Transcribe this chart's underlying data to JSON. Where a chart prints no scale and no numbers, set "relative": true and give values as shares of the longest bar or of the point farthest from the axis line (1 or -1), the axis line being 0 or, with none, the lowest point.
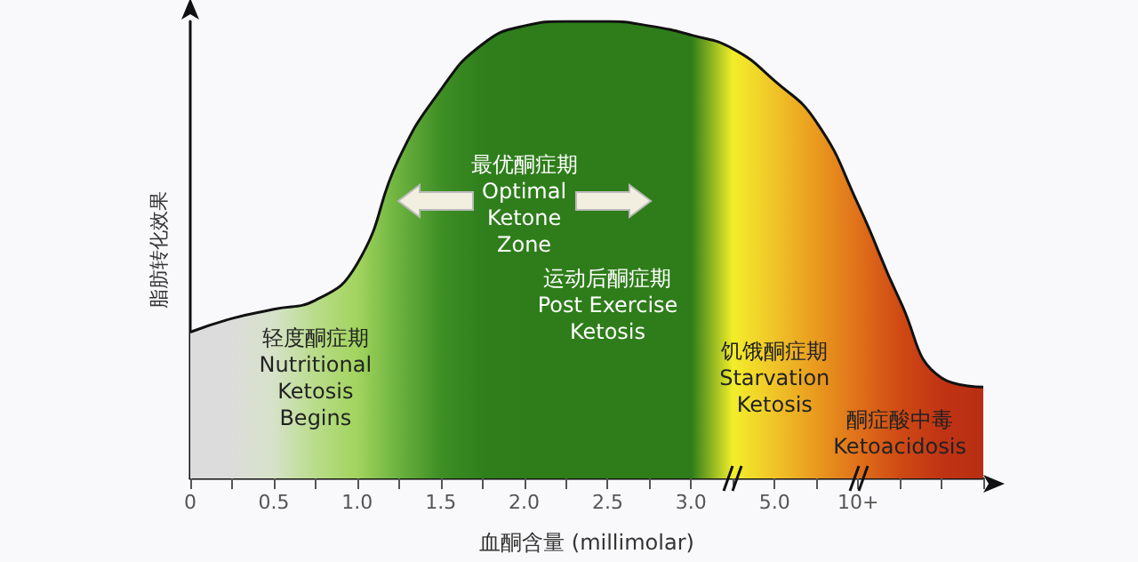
{
  "chart_data": {
    "type": "area",
    "relative": true,
    "xlabel": "血酮含量 (millimolar)",
    "ylabel": "脂肪转化效果",
    "categories": [
      "0",
      null,
      "0.5",
      null,
      "1.0",
      null,
      "1.5",
      null,
      "2.0",
      null,
      "2.5",
      null,
      "3.0",
      null,
      "5.0",
      null,
      "10+",
      null,
      null,
      null
    ],
    "series": [
      {
        "color": "#111111",
        "values": [
          0.32,
          0.35,
          0.37,
          0.39,
          0.47,
          0.7,
          0.85,
          0.95,
          0.99,
          1.0,
          1.0,
          0.99,
          0.97,
          0.94,
          0.87,
          0.78,
          0.6,
          0.39,
          0.22,
          0.2
        ],
        "colors": [
          "#dcdcdc",
          "#dcdcdc",
          "#d6e2c8",
          "#b9dc8a",
          "#a2d45e",
          "#6bb23e",
          "#3f8f26",
          "#2f7f1c",
          "#2e7d1a",
          "#2e7d1a",
          "#2e7d1a",
          "#2e7d1a",
          "#2e7d1a",
          "#f2ee2a",
          "#f0c428",
          "#e99a1e",
          "#e0701a",
          "#cf4a14",
          "#c03414",
          "#b82e12"
        ]
      }
    ],
    "annotations": [
      "最优酮症期\nOptimal\nKetone\nZone",
      "轻度酮症期\nNutritional\nKetosis\nBegins",
      "运动后酮症期\nPost Exercise\nKetosis",
      "饥饿酮症期\nStarvation\nKetosis",
      "酮症酸中毒\nKetoacidosis"
    ],
    "grid": false,
    "marker": "none",
    "line_style": "solid"
  }
}
